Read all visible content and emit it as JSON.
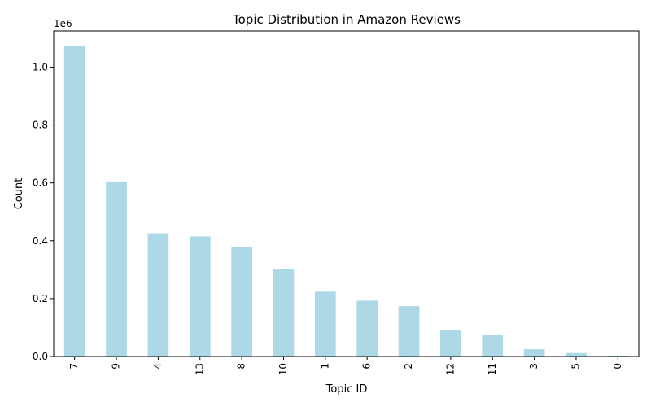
{
  "chart_data": {
    "type": "bar",
    "title": "Topic Distribution in Amazon Reviews",
    "xlabel": "Topic ID",
    "ylabel": "Count",
    "scale_label": "1e6",
    "categories": [
      "7",
      "9",
      "4",
      "13",
      "8",
      "10",
      "1",
      "6",
      "2",
      "12",
      "11",
      "3",
      "5",
      "0"
    ],
    "values": [
      1072000,
      605000,
      426000,
      415000,
      378000,
      302000,
      224000,
      193000,
      174000,
      90000,
      73000,
      25000,
      12000,
      3000
    ],
    "ylim": [
      0,
      1125000
    ],
    "yticks": [
      0,
      200000,
      400000,
      600000,
      800000,
      1000000
    ],
    "ytick_labels": [
      "0.0",
      "0.2",
      "0.4",
      "0.6",
      "0.8",
      "1.0"
    ],
    "bar_color": "#add8e6",
    "grid": false,
    "legend": "none"
  }
}
